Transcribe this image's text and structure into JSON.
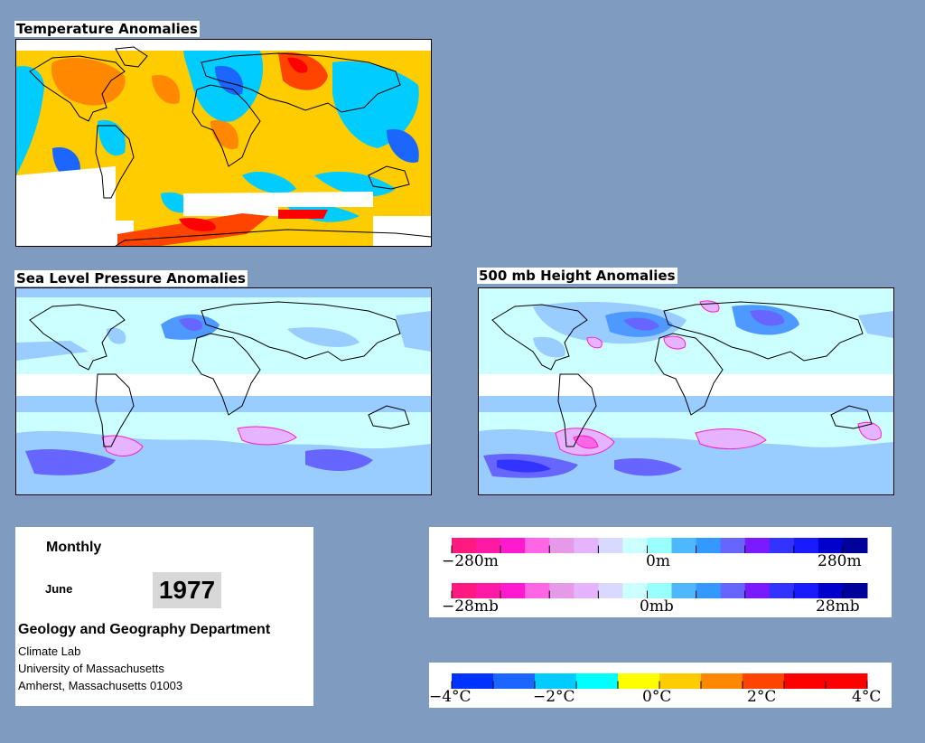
{
  "panels": {
    "temperature": {
      "title": "Temperature Anomalies"
    },
    "slp": {
      "title": "Sea Level Pressure Anomalies"
    },
    "height500": {
      "title": "500 mb Height Anomalies"
    }
  },
  "info": {
    "period": "Monthly",
    "month": "June",
    "year": "1977",
    "department": "Geology and Geography Department",
    "lines": [
      "Climate Lab",
      "University of Massachusetts",
      "Amherst, Massachusetts 01003"
    ]
  },
  "legends": {
    "height": {
      "labels": [
        "−280m",
        "0m",
        "280m"
      ]
    },
    "pressure": {
      "labels": [
        "−28mb",
        "0mb",
        "28mb"
      ]
    },
    "temperature": {
      "labels": [
        "−4°C",
        "−2°C",
        "0°C",
        "2°C",
        "4°C"
      ]
    }
  },
  "colors": {
    "background": "#7f9cc0",
    "anomaly_scale": [
      "#ff1a7f",
      "#ff1aa6",
      "#ff1ad0",
      "#ff66e6",
      "#e699e6",
      "#e6b3ff",
      "#d9d9ff",
      "#ccffff",
      "#99ffff",
      "#4db8ff",
      "#3399ff",
      "#6666ff",
      "#7a1aff",
      "#3333ff",
      "#1a1aff",
      "#0000cc",
      "#00009a"
    ],
    "temp_scale": [
      "#0033ff",
      "#1a66ff",
      "#00ccff",
      "#00ffff",
      "#ffff00",
      "#ffcc00",
      "#ff8800",
      "#ff4400",
      "#ff0000"
    ]
  }
}
